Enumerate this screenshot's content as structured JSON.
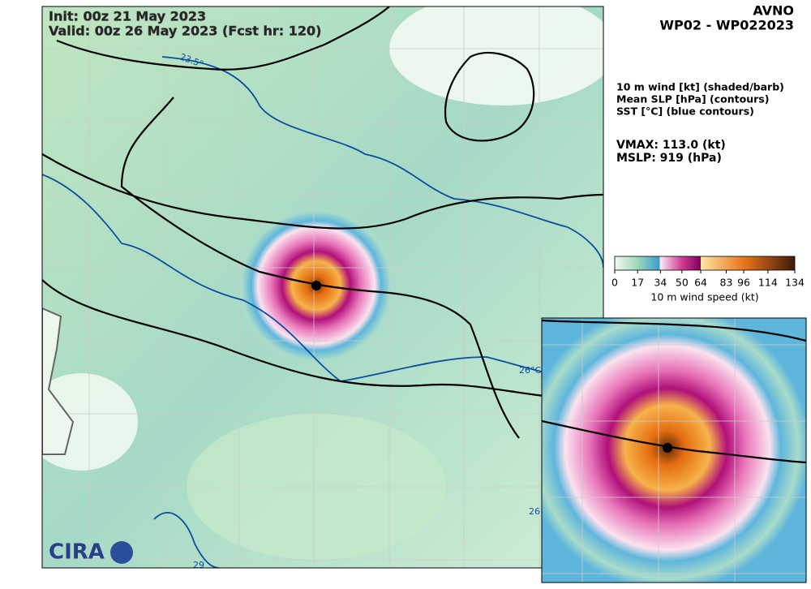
{
  "header": {
    "init": "Init:   00z 21 May 2023",
    "valid": "Valid: 00z 26 May 2023 (Fcst hr: 120)"
  },
  "model": "AVNO",
  "storm": "WP02 - WP022023",
  "fields": [
    "10 m wind [kt] (shaded/barb)",
    "Mean SLP [hPa] (contours)",
    "SST [°C] (blue contours)"
  ],
  "vmax": "VMAX: 113.0 (kt)",
  "mslp": "MSLP:  919 (hPa)",
  "colorbar": {
    "ticks": [
      0,
      17,
      34,
      50,
      64,
      83,
      96,
      114,
      134
    ],
    "label": "10 m wind speed (kt)"
  },
  "contour_labels": [
    "23.5°",
    "26°C",
    "26",
    "29"
  ],
  "logo": "CIRA"
}
